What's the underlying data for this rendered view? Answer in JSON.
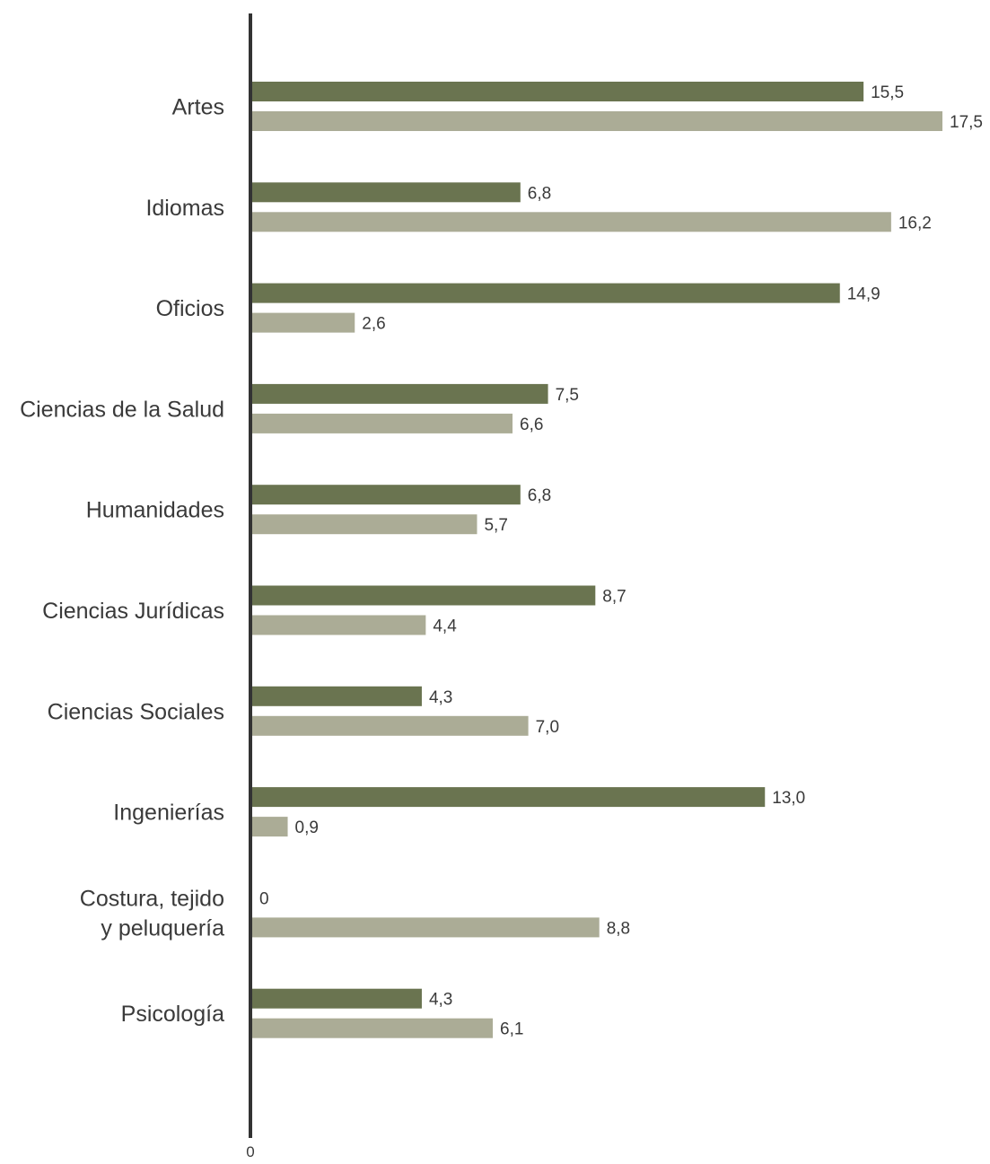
{
  "chart_data": {
    "type": "bar",
    "orientation": "horizontal",
    "title": "",
    "xlabel": "",
    "ylabel": "",
    "categories": [
      [
        "Artes"
      ],
      [
        "Idiomas"
      ],
      [
        "Oficios"
      ],
      [
        "Ciencias de la Salud"
      ],
      [
        "Humanidades"
      ],
      [
        "Ciencias Jurídicas"
      ],
      [
        "Ciencias Sociales"
      ],
      [
        "Ingenierías"
      ],
      [
        "Costura, tejido",
        "y peluquería"
      ],
      [
        "Psicología"
      ]
    ],
    "series": [
      {
        "color": "#6a7450",
        "values": [
          15.5,
          6.8,
          14.9,
          7.5,
          6.8,
          8.7,
          4.3,
          13.0,
          0,
          4.3
        ],
        "value_labels": [
          "15,5",
          "6,8",
          "14,9",
          "7,5",
          "6,8",
          "8,7",
          "4,3",
          "13,0",
          "0",
          "4,3"
        ]
      },
      {
        "color": "#abac96",
        "values": [
          17.5,
          16.2,
          2.6,
          6.6,
          5.7,
          4.4,
          7.0,
          0.9,
          8.8,
          6.1
        ],
        "value_labels": [
          "17,5",
          "16,2",
          "2,6",
          "6,6",
          "5,7",
          "4,4",
          "7,0",
          "0,9",
          "8,8",
          "6,1"
        ]
      }
    ],
    "xlim": [
      0,
      17.5
    ],
    "x_ticks": [
      {
        "value": 0,
        "label": "0"
      }
    ],
    "axis_color": "#333333",
    "grid": false,
    "legend": "none"
  }
}
